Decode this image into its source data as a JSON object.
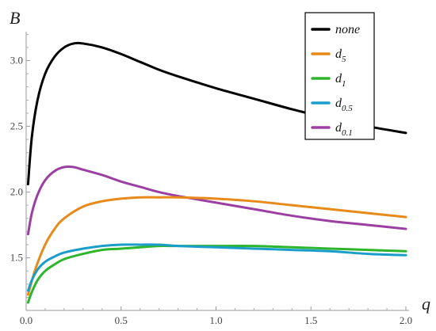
{
  "chart_data": {
    "type": "line",
    "xlabel": "q",
    "ylabel": "B",
    "xlim": [
      0,
      2.0
    ],
    "ylim": [
      1.1,
      3.22
    ],
    "x_ticks": [
      "0.0",
      "0.5",
      "1.0",
      "1.5",
      "2.0"
    ],
    "y_ticks": [
      "1.5",
      "2.0",
      "2.5",
      "3.0"
    ],
    "grid": false,
    "legend_position": "top-right",
    "series": [
      {
        "name": "none",
        "name_main": "none",
        "name_sub": "",
        "color": "#000000",
        "x": [
          0.01,
          0.03,
          0.06,
          0.1,
          0.15,
          0.2,
          0.25,
          0.3,
          0.4,
          0.5,
          0.6,
          0.7,
          0.8,
          1.0,
          1.2,
          1.4,
          1.6,
          1.8,
          2.0
        ],
        "y": [
          2.06,
          2.42,
          2.7,
          2.9,
          3.03,
          3.1,
          3.13,
          3.13,
          3.1,
          3.05,
          2.99,
          2.93,
          2.88,
          2.79,
          2.71,
          2.63,
          2.56,
          2.5,
          2.45
        ]
      },
      {
        "name": "d5",
        "name_main": "d",
        "name_sub": "5",
        "color": "#e88a1a",
        "x": [
          0.01,
          0.05,
          0.1,
          0.15,
          0.2,
          0.3,
          0.4,
          0.5,
          0.6,
          0.7,
          0.8,
          1.0,
          1.2,
          1.4,
          1.6,
          1.8,
          2.0
        ],
        "y": [
          1.22,
          1.42,
          1.6,
          1.72,
          1.8,
          1.89,
          1.93,
          1.95,
          1.96,
          1.96,
          1.96,
          1.95,
          1.93,
          1.9,
          1.87,
          1.84,
          1.81
        ]
      },
      {
        "name": "d1",
        "name_main": "d",
        "name_sub": "1",
        "color": "#2db52d",
        "x": [
          0.01,
          0.03,
          0.06,
          0.1,
          0.15,
          0.2,
          0.3,
          0.4,
          0.5,
          0.6,
          0.7,
          0.8,
          1.0,
          1.2,
          1.4,
          1.6,
          1.8,
          2.0
        ],
        "y": [
          1.16,
          1.24,
          1.33,
          1.4,
          1.45,
          1.49,
          1.53,
          1.56,
          1.57,
          1.58,
          1.59,
          1.59,
          1.59,
          1.59,
          1.58,
          1.57,
          1.56,
          1.55
        ]
      },
      {
        "name": "d0.5",
        "name_main": "d",
        "name_sub": "0.5",
        "color": "#1a9ec9",
        "x": [
          0.01,
          0.03,
          0.06,
          0.1,
          0.15,
          0.2,
          0.3,
          0.4,
          0.5,
          0.6,
          0.7,
          0.8,
          1.0,
          1.2,
          1.4,
          1.6,
          1.8,
          2.0
        ],
        "y": [
          1.25,
          1.33,
          1.41,
          1.47,
          1.51,
          1.54,
          1.57,
          1.59,
          1.6,
          1.6,
          1.6,
          1.59,
          1.58,
          1.57,
          1.56,
          1.55,
          1.53,
          1.52
        ]
      },
      {
        "name": "d0.1",
        "name_main": "d",
        "name_sub": "0.1",
        "color": "#9b3fa3",
        "x": [
          0.01,
          0.03,
          0.06,
          0.1,
          0.15,
          0.2,
          0.25,
          0.3,
          0.4,
          0.5,
          0.6,
          0.7,
          0.8,
          1.0,
          1.2,
          1.4,
          1.6,
          1.8,
          2.0
        ],
        "y": [
          1.68,
          1.84,
          1.98,
          2.09,
          2.16,
          2.19,
          2.19,
          2.17,
          2.13,
          2.08,
          2.04,
          2.0,
          1.97,
          1.92,
          1.87,
          1.82,
          1.78,
          1.75,
          1.72
        ]
      }
    ]
  }
}
